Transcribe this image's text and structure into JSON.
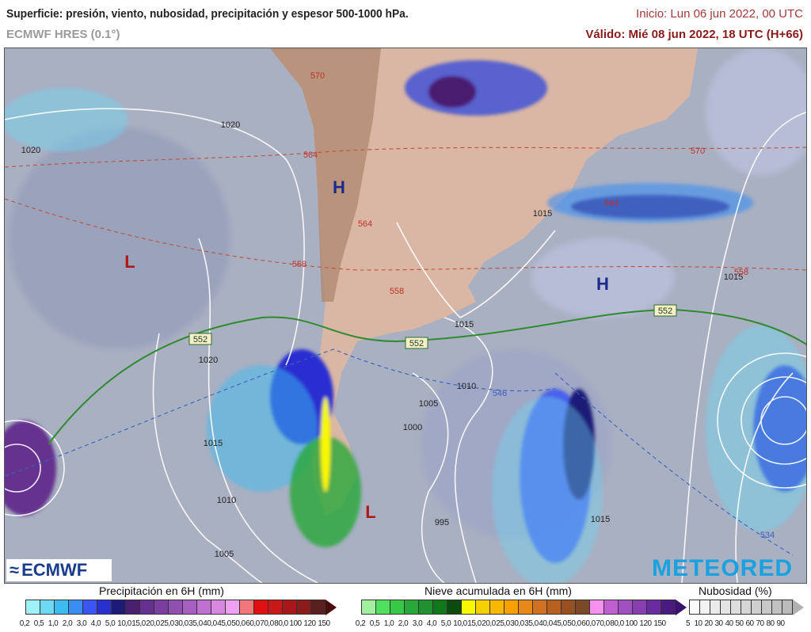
{
  "header": {
    "title": "Superficie: presión, viento, nubosidad, precipitación y espesor 500-1000 hPa.",
    "model": "ECMWF HRES (0.1°)",
    "init": "Inicio: Lun 06 jun 2022, 00 UTC",
    "valid": "Válido: Mié 08 jun 2022, 18 UTC (H+66)"
  },
  "map": {
    "pressure_centers": [
      {
        "label": "H",
        "color": "#1a2a8c"
      },
      {
        "label": "L",
        "color": "#b01818"
      },
      {
        "label": "H",
        "color": "#1a2a8c"
      },
      {
        "label": "L",
        "color": "#b01818"
      }
    ],
    "isobar_labels": [
      "1020",
      "1020",
      "1015",
      "1010",
      "1005",
      "1000",
      "1020",
      "1015",
      "1010",
      "1005",
      "1015",
      "1015",
      "995",
      "1015"
    ],
    "thickness_labels": [
      "570",
      "564",
      "564",
      "558",
      "558",
      "570",
      "564",
      "558",
      "546",
      "534"
    ],
    "thickness_552_labels": [
      "552",
      "552",
      "552"
    ],
    "logos": {
      "left": "ECMWF",
      "right": "METEORED"
    }
  },
  "legend": {
    "precip": {
      "title": "Precipitación en 6H (mm)",
      "ticks": [
        "0,2",
        "0,5",
        "1,0",
        "2,0",
        "3,0",
        "4,0",
        "5,0",
        "10,0",
        "15,0",
        "20,0",
        "25,0",
        "30,0",
        "35,0",
        "40,0",
        "45,0",
        "50,0",
        "60,0",
        "70,0",
        "80,0",
        "100",
        "120",
        "150"
      ],
      "colors": [
        "#9ef2f7",
        "#6fd8f2",
        "#3cbcf0",
        "#3a8ef2",
        "#3a55f2",
        "#2a2fd0",
        "#1c1c78",
        "#4a1f70",
        "#663090",
        "#7a3ea0",
        "#9050b0",
        "#a860c0",
        "#c070d0",
        "#d888e0",
        "#f0a0f0",
        "#f07878",
        "#e01010",
        "#c81818",
        "#a81818",
        "#8a1c1c",
        "#5a2020"
      ],
      "arrow_color": "#4a0c0c"
    },
    "snow": {
      "title": "Nieve acumulada en 6H (mm)",
      "ticks": [
        "0,2",
        "0,5",
        "1,0",
        "2,0",
        "3,0",
        "4,0",
        "5,0",
        "10,0",
        "15,0",
        "20,0",
        "25,0",
        "30,0",
        "35,0",
        "40,0",
        "45,0",
        "50,0",
        "60,0",
        "70,0",
        "80,0",
        "100",
        "120",
        "150"
      ],
      "colors": [
        "#a0f0a0",
        "#50e060",
        "#38c848",
        "#28a838",
        "#209030",
        "#107818",
        "#0c4a10",
        "#f8f800",
        "#f8d000",
        "#f8b800",
        "#f8a000",
        "#e88818",
        "#d07020",
        "#b86020",
        "#985020",
        "#7a4a28",
        "#f890f0",
        "#c060d0",
        "#a050c0",
        "#8840b0",
        "#6a2aa0",
        "#4a1a80"
      ],
      "arrow_color": "#3a1070"
    },
    "cloud": {
      "title": "Nubosidad (%)",
      "ticks": [
        "5",
        "10",
        "20",
        "30",
        "40",
        "50",
        "60",
        "70",
        "80",
        "90"
      ],
      "colors": [
        "#fafafa",
        "#f2f2f2",
        "#ebebeb",
        "#e4e4e4",
        "#dddddd",
        "#d6d6d6",
        "#cfcfcf",
        "#c8c8c8",
        "#c1c1c1",
        "#bababa"
      ],
      "arrow_color": "#b0b0b0"
    }
  }
}
